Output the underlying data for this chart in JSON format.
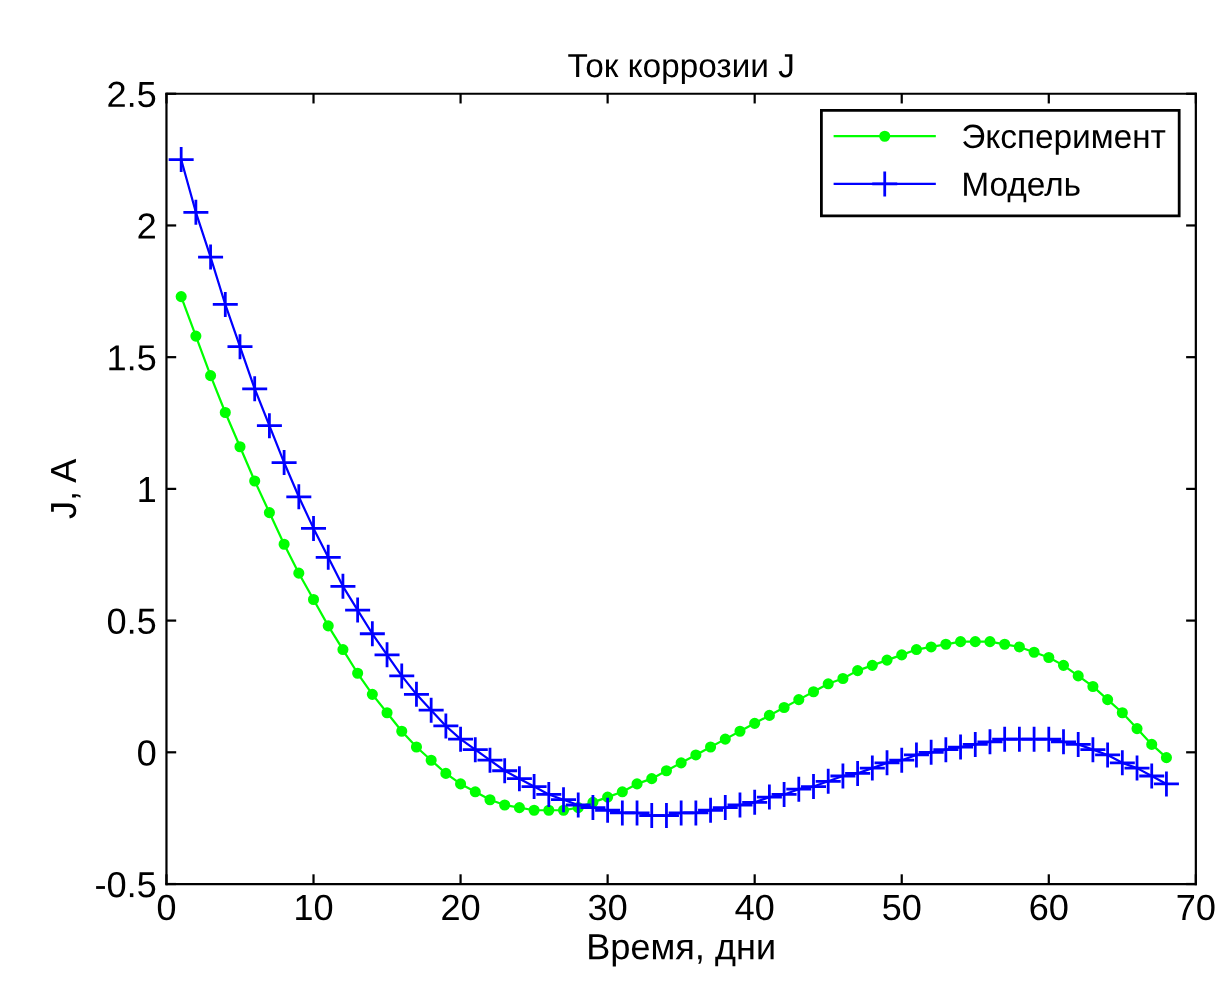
{
  "chart_data": {
    "type": "line",
    "title": "Ток коррозии J",
    "xlabel": "Время, дни",
    "ylabel": "J, A",
    "x": [
      1,
      2,
      3,
      4,
      5,
      6,
      7,
      8,
      9,
      10,
      11,
      12,
      13,
      14,
      15,
      16,
      17,
      18,
      19,
      20,
      21,
      22,
      23,
      24,
      25,
      26,
      27,
      28,
      29,
      30,
      31,
      32,
      33,
      34,
      35,
      36,
      37,
      38,
      39,
      40,
      41,
      42,
      43,
      44,
      45,
      46,
      47,
      48,
      49,
      50,
      51,
      52,
      53,
      54,
      55,
      56,
      57,
      58,
      59,
      60,
      61,
      62,
      63,
      64,
      65,
      66,
      67,
      68
    ],
    "series": [
      {
        "name": "Эксперимент",
        "color": "#00ff00",
        "marker": "circle",
        "values": [
          1.73,
          1.58,
          1.43,
          1.29,
          1.16,
          1.03,
          0.91,
          0.79,
          0.68,
          0.58,
          0.48,
          0.39,
          0.3,
          0.22,
          0.15,
          0.08,
          0.02,
          -0.03,
          -0.08,
          -0.12,
          -0.15,
          -0.18,
          -0.2,
          -0.21,
          -0.22,
          -0.22,
          -0.22,
          -0.21,
          -0.19,
          -0.17,
          -0.15,
          -0.12,
          -0.1,
          -0.07,
          -0.04,
          -0.01,
          0.02,
          0.05,
          0.08,
          0.11,
          0.14,
          0.17,
          0.2,
          0.23,
          0.26,
          0.28,
          0.31,
          0.33,
          0.35,
          0.37,
          0.39,
          0.4,
          0.41,
          0.42,
          0.42,
          0.42,
          0.41,
          0.4,
          0.38,
          0.36,
          0.33,
          0.29,
          0.25,
          0.2,
          0.15,
          0.09,
          0.03,
          -0.02
        ]
      },
      {
        "name": "Модель",
        "color": "#0000ff",
        "marker": "cross",
        "values": [
          2.25,
          2.05,
          1.88,
          1.7,
          1.54,
          1.38,
          1.24,
          1.1,
          0.97,
          0.85,
          0.74,
          0.63,
          0.54,
          0.45,
          0.37,
          0.29,
          0.22,
          0.16,
          0.1,
          0.05,
          0.01,
          -0.03,
          -0.07,
          -0.1,
          -0.13,
          -0.16,
          -0.18,
          -0.2,
          -0.21,
          -0.22,
          -0.23,
          -0.23,
          -0.24,
          -0.24,
          -0.23,
          -0.23,
          -0.22,
          -0.21,
          -0.2,
          -0.19,
          -0.17,
          -0.16,
          -0.14,
          -0.13,
          -0.11,
          -0.09,
          -0.08,
          -0.06,
          -0.04,
          -0.03,
          -0.01,
          0.0,
          0.01,
          0.02,
          0.03,
          0.04,
          0.05,
          0.05,
          0.05,
          0.05,
          0.04,
          0.03,
          0.01,
          -0.01,
          -0.04,
          -0.06,
          -0.09,
          -0.12
        ]
      }
    ],
    "xlim": [
      0,
      70
    ],
    "xticks": [
      0,
      10,
      20,
      30,
      40,
      50,
      60,
      70
    ],
    "ylim": [
      -0.5,
      2.5
    ],
    "yticks": [
      -0.5,
      0,
      0.5,
      1,
      1.5,
      2,
      2.5
    ],
    "grid": false,
    "legend": "top right",
    "line_style": "solid"
  }
}
